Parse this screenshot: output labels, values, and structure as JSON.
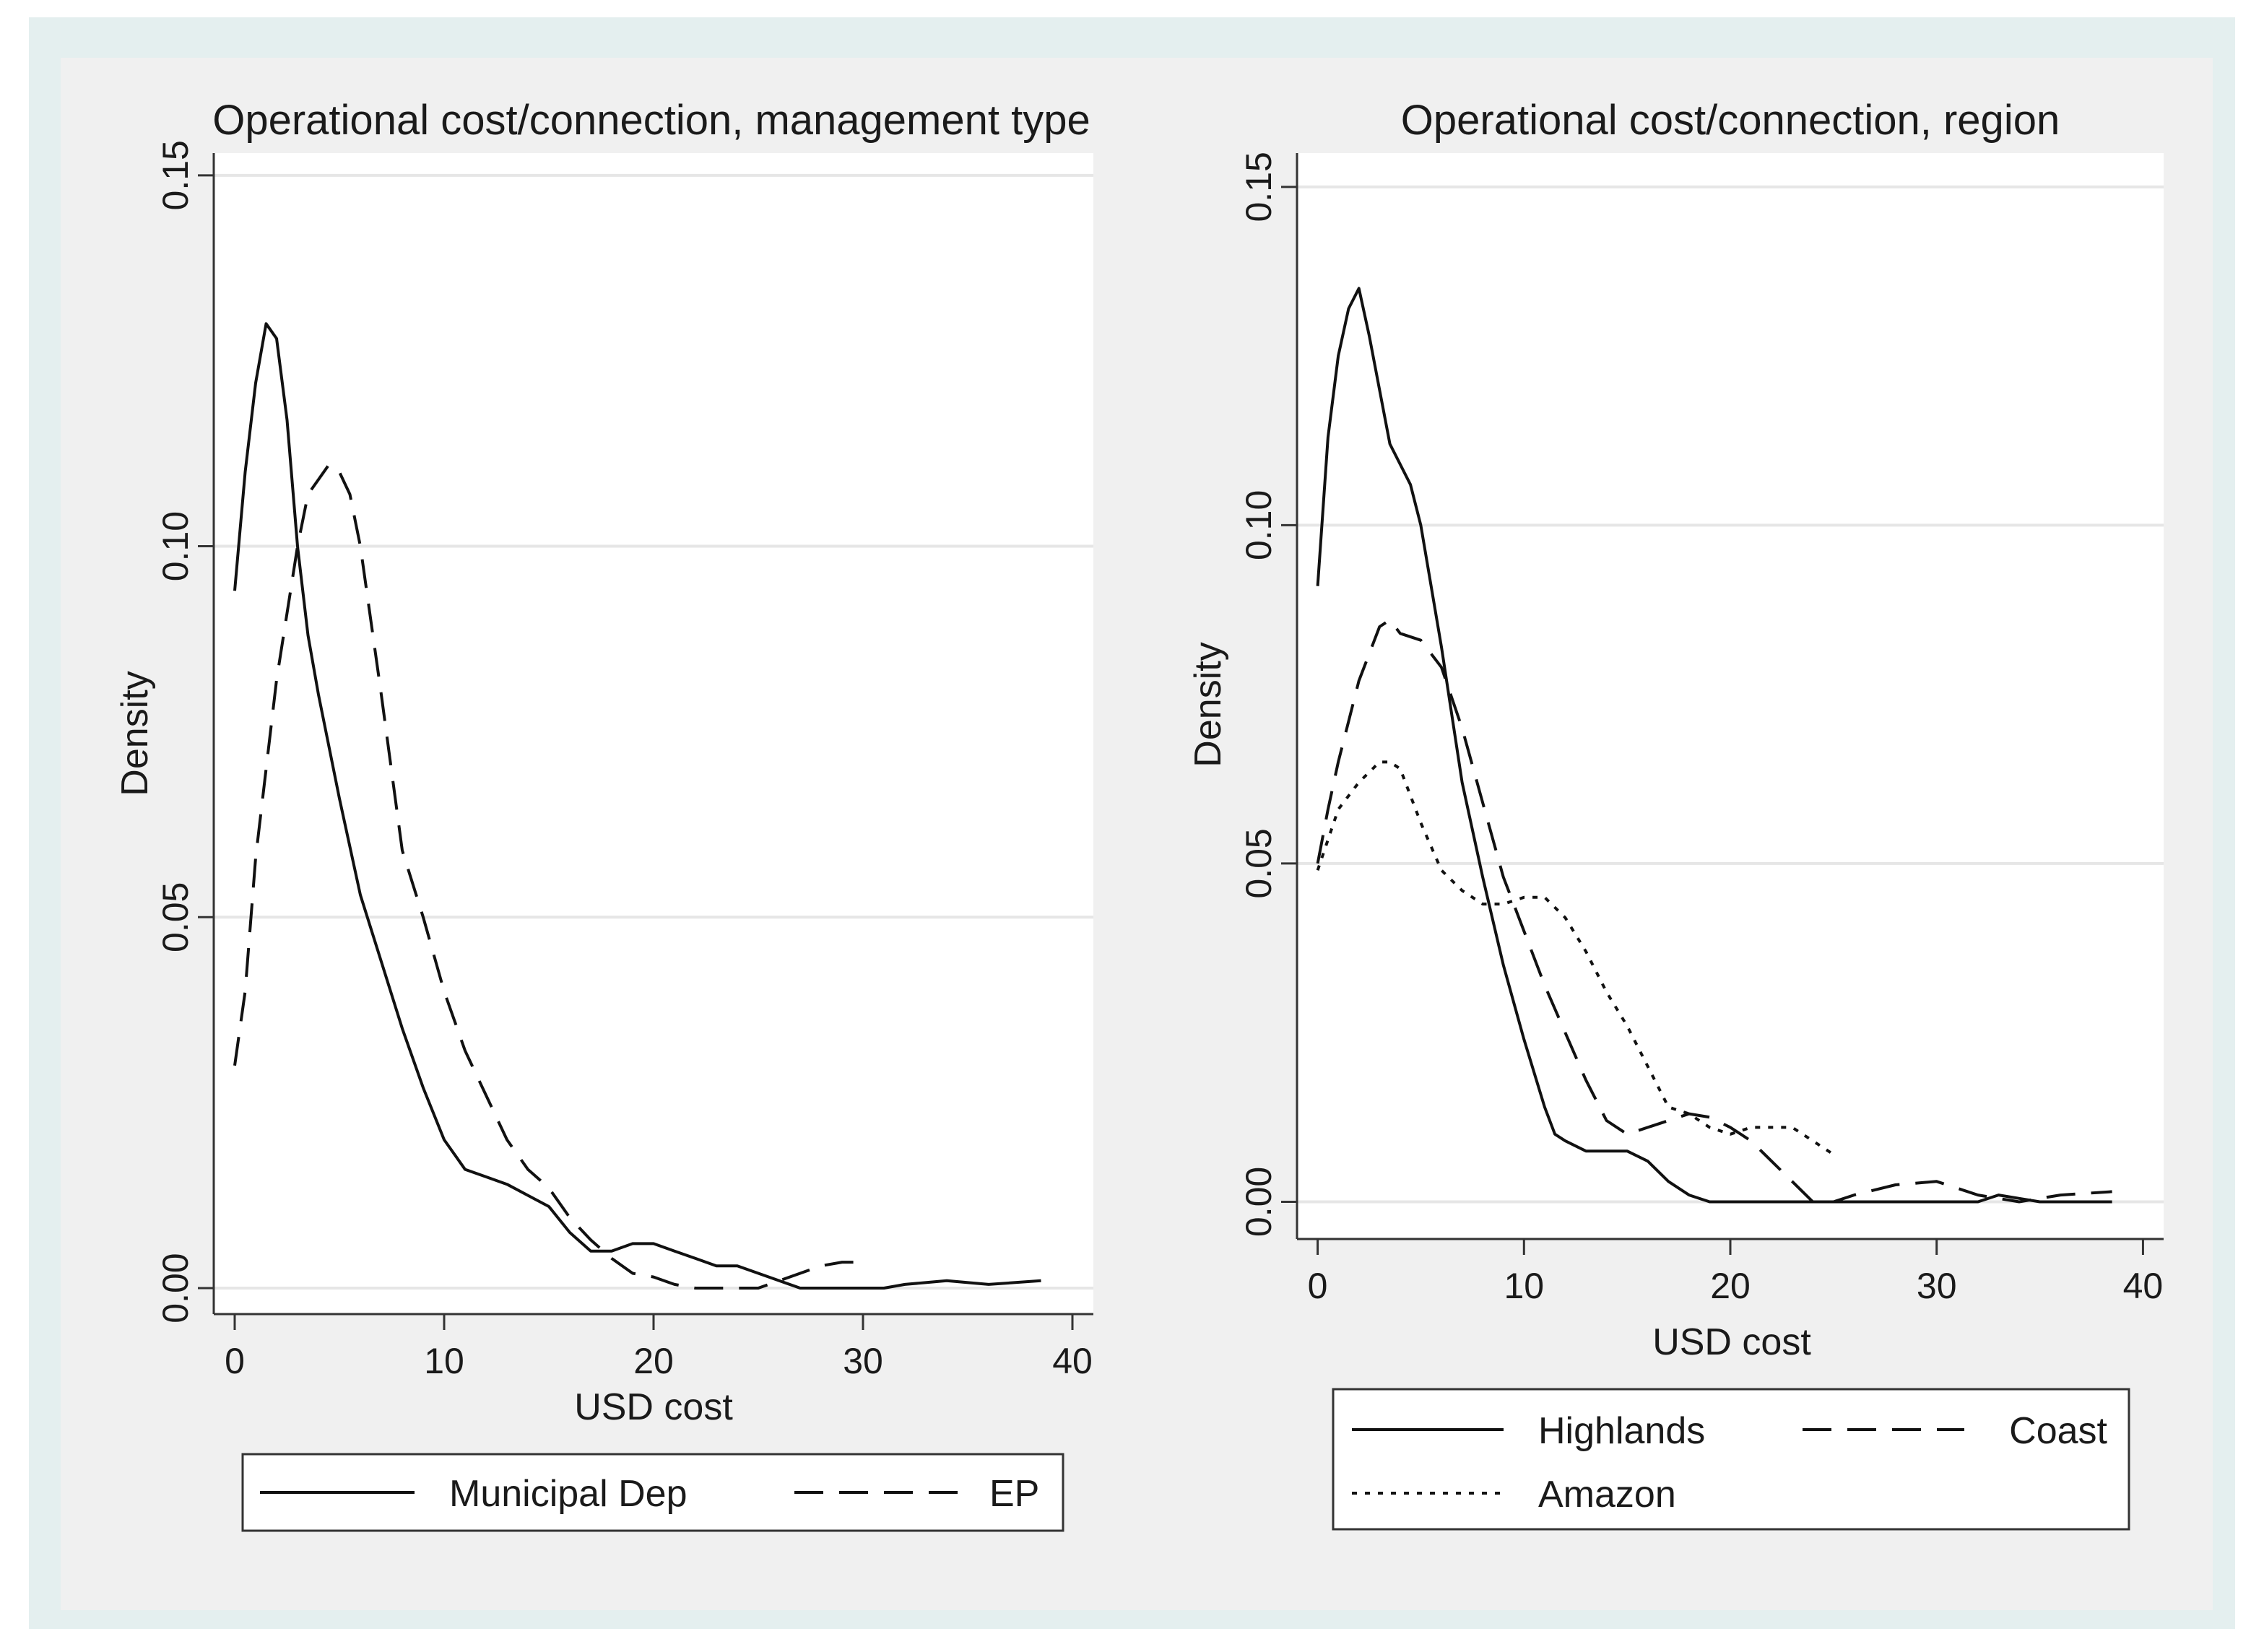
{
  "chart_data": [
    {
      "type": "line",
      "title": "Operational cost/connection, management type",
      "xlabel": "USD cost",
      "ylabel": "Density",
      "xlim": [
        -1,
        41
      ],
      "ylim": [
        -0.0035,
        0.153
      ],
      "xticks": [
        0,
        10,
        20,
        30,
        40
      ],
      "xtick_labels": [
        "0",
        "10",
        "20",
        "30",
        "40"
      ],
      "yticks": [
        0,
        0.05,
        0.1,
        0.15
      ],
      "ytick_labels": [
        "0.00",
        "0.05",
        "0.10",
        "0.15"
      ],
      "grid": "horizontal",
      "legend_position": "bottom",
      "series": [
        {
          "name": "Municipal Dep",
          "style": "solid",
          "x": [
            0,
            0.5,
            1,
            1.5,
            2,
            2.5,
            3,
            3.5,
            4,
            5,
            6,
            7,
            8,
            9,
            10,
            11,
            12,
            13,
            14,
            15,
            16,
            17,
            18,
            19,
            20,
            21,
            22,
            23,
            24,
            25,
            26,
            27,
            28,
            30,
            31,
            32,
            34,
            36,
            38.5
          ],
          "y": [
            0.094,
            0.11,
            0.122,
            0.13,
            0.128,
            0.117,
            0.1,
            0.088,
            0.08,
            0.066,
            0.053,
            0.044,
            0.035,
            0.027,
            0.02,
            0.016,
            0.015,
            0.014,
            0.0125,
            0.011,
            0.0075,
            0.005,
            0.005,
            0.006,
            0.006,
            0.005,
            0.004,
            0.003,
            0.003,
            0.002,
            0.001,
            0.0,
            0.0,
            0.0,
            0.0,
            0.0005,
            0.001,
            0.0005,
            0.001
          ]
        },
        {
          "name": "EP",
          "style": "dashed",
          "x": [
            0,
            0.5,
            1,
            2,
            3,
            3.5,
            4,
            4.5,
            5,
            5.5,
            6,
            7,
            8,
            9,
            10,
            11,
            12,
            13,
            14,
            15,
            16,
            17,
            18,
            19,
            20,
            21,
            22,
            23,
            24,
            25,
            26,
            27,
            28,
            29,
            30
          ],
          "y": [
            0.03,
            0.04,
            0.058,
            0.082,
            0.1,
            0.107,
            0.109,
            0.111,
            0.11,
            0.107,
            0.1,
            0.08,
            0.059,
            0.05,
            0.04,
            0.032,
            0.026,
            0.02,
            0.016,
            0.0135,
            0.0095,
            0.0065,
            0.004,
            0.002,
            0.0015,
            0.0005,
            0.0,
            0.0,
            0.0,
            0.0,
            0.001,
            0.002,
            0.003,
            0.0035,
            0.0035
          ]
        }
      ]
    },
    {
      "type": "line",
      "title": "Operational cost/connection, region",
      "xlabel": "USD cost",
      "ylabel": "Density",
      "xlim": [
        -1,
        41
      ],
      "ylim": [
        -0.0055,
        0.155
      ],
      "xticks": [
        0,
        10,
        20,
        30,
        40
      ],
      "xtick_labels": [
        "0",
        "10",
        "20",
        "30",
        "40"
      ],
      "yticks": [
        0,
        0.05,
        0.1,
        0.15
      ],
      "ytick_labels": [
        "0.00",
        "0.05",
        "0.10",
        "0.15"
      ],
      "grid": "horizontal",
      "legend_position": "bottom",
      "series": [
        {
          "name": "Highlands",
          "style": "solid",
          "x": [
            0,
            0.5,
            1,
            1.5,
            2,
            2.5,
            3,
            3.5,
            4,
            4.5,
            5,
            6,
            7,
            8,
            9,
            10,
            11,
            11.5,
            12,
            13,
            14,
            15,
            16,
            17,
            18,
            19,
            20,
            22,
            24,
            26,
            28,
            30,
            32,
            33,
            34,
            35,
            36,
            38.5
          ],
          "y": [
            0.091,
            0.113,
            0.125,
            0.132,
            0.135,
            0.128,
            0.12,
            0.112,
            0.109,
            0.106,
            0.1,
            0.082,
            0.062,
            0.048,
            0.035,
            0.024,
            0.014,
            0.01,
            0.009,
            0.0075,
            0.0075,
            0.0075,
            0.006,
            0.003,
            0.001,
            0.0,
            0.0,
            0.0,
            0.0,
            0.0,
            0.0,
            0.0,
            0.0,
            0.001,
            0.0005,
            0.0,
            0.0,
            0.0
          ]
        },
        {
          "name": "Coast",
          "style": "dashed",
          "x": [
            0,
            0.5,
            1,
            2,
            3,
            3.5,
            4,
            5,
            6,
            7,
            8,
            9,
            10,
            11,
            12,
            13,
            14,
            15,
            16,
            17,
            18,
            19,
            20,
            21,
            22,
            23,
            24,
            25,
            26,
            28,
            30,
            32,
            34,
            36,
            38.5
          ],
          "y": [
            0.05,
            0.058,
            0.065,
            0.077,
            0.085,
            0.086,
            0.084,
            0.083,
            0.079,
            0.07,
            0.059,
            0.048,
            0.04,
            0.032,
            0.025,
            0.018,
            0.012,
            0.01,
            0.011,
            0.012,
            0.013,
            0.0125,
            0.011,
            0.009,
            0.006,
            0.003,
            0.0,
            0.0,
            0.001,
            0.0025,
            0.003,
            0.001,
            0.0,
            0.001,
            0.0015
          ]
        },
        {
          "name": "Amazon",
          "style": "dotted",
          "x": [
            0,
            1,
            2,
            3,
            3.5,
            4,
            5,
            6,
            7,
            8,
            9,
            10,
            11,
            12,
            13,
            14,
            15,
            16,
            17,
            18,
            19,
            20,
            21,
            22,
            23,
            24,
            25
          ],
          "y": [
            0.049,
            0.058,
            0.062,
            0.065,
            0.065,
            0.064,
            0.056,
            0.049,
            0.046,
            0.044,
            0.044,
            0.045,
            0.045,
            0.042,
            0.037,
            0.031,
            0.026,
            0.02,
            0.014,
            0.013,
            0.011,
            0.01,
            0.011,
            0.011,
            0.011,
            0.009,
            0.007
          ]
        }
      ]
    }
  ]
}
